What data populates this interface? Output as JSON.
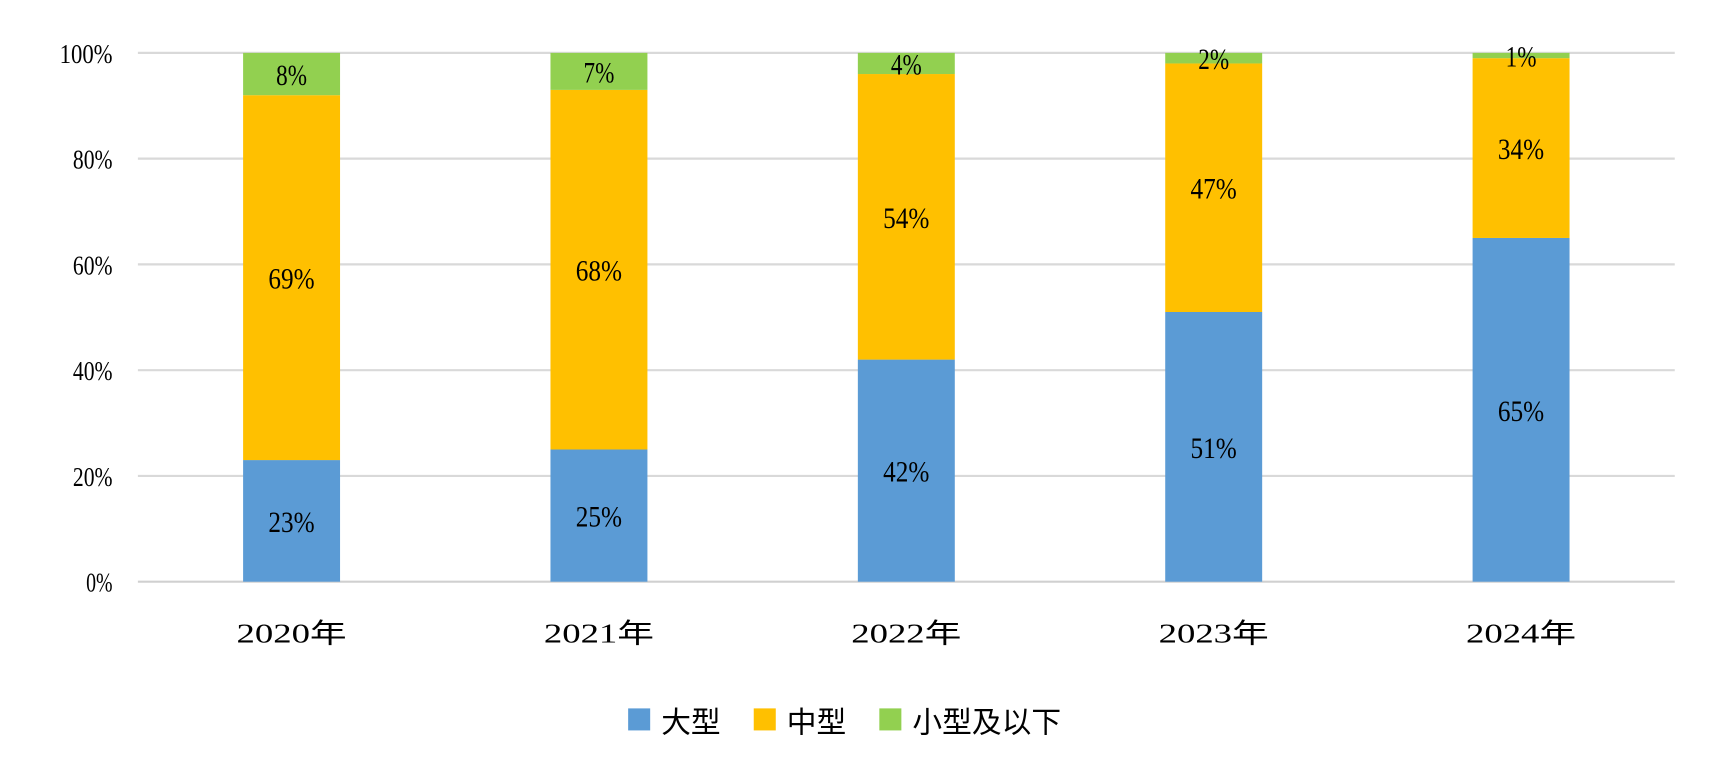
{
  "chart_data": {
    "type": "bar",
    "stacked": true,
    "percent_stacked": true,
    "categories": [
      "2020年",
      "2021年",
      "2022年",
      "2023年",
      "2024年"
    ],
    "series": [
      {
        "name": "大型",
        "color": "#5B9BD5",
        "values": [
          23,
          25,
          42,
          51,
          65
        ],
        "labels": [
          "23%",
          "25%",
          "42%",
          "51%",
          "65%"
        ]
      },
      {
        "name": "中型",
        "color": "#FFC000",
        "values": [
          69,
          68,
          54,
          47,
          34
        ],
        "labels": [
          "69%",
          "68%",
          "54%",
          "47%",
          "34%"
        ]
      },
      {
        "name": "小型及以下",
        "color": "#92D050",
        "values": [
          8,
          7,
          4,
          2,
          1
        ],
        "labels": [
          "8%",
          "7%",
          "4%",
          "2%",
          "1%"
        ]
      }
    ],
    "yticks": [
      "0%",
      "20%",
      "40%",
      "60%",
      "80%",
      "100%"
    ],
    "ylim": [
      0,
      100
    ],
    "grid": true,
    "legend_position": "bottom",
    "title": "",
    "xlabel": "",
    "ylabel": ""
  }
}
